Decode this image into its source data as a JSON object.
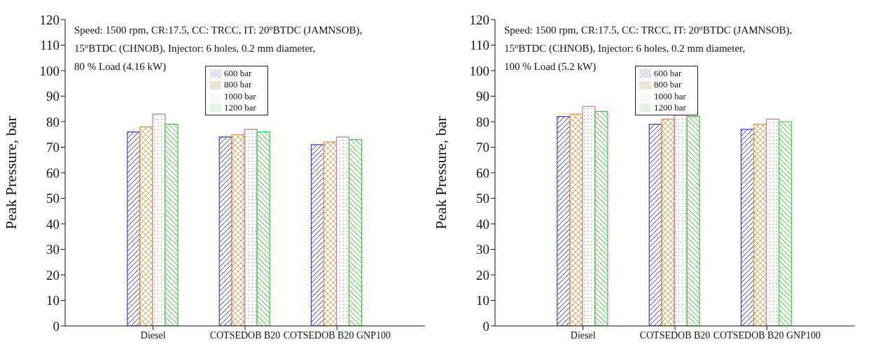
{
  "chart_data": [
    {
      "type": "bar",
      "ylabel": "Peak Pressure, bar",
      "categories": [
        "Diesel",
        "COTSEDOB B20",
        "COTSEDOB B20 GNP100"
      ],
      "ylim": [
        0,
        120
      ],
      "yticks": [
        0,
        10,
        20,
        30,
        40,
        50,
        60,
        70,
        80,
        90,
        100,
        110,
        120
      ],
      "grid": false,
      "legend": "top",
      "annotations": [
        "Speed: 1500 rpm, CR:17.5, CC: TRCC, IT: 20$^{o}$BTDC (JAMNSOB),",
        "15$^{o}$BTDC (CHNOB), Injector: 6 holes, 0.2 mm diameter,",
        "80 % Load (4.16 kW)"
      ],
      "series": [
        {
          "name": "600 bar",
          "color": "#3b3bd0",
          "values": [
            76,
            74,
            71
          ]
        },
        {
          "name": "800 bar",
          "color": "#e8903a",
          "values": [
            78,
            75,
            72
          ]
        },
        {
          "name": "1000 bar",
          "color": "#c0809c",
          "values": [
            83,
            77,
            74
          ]
        },
        {
          "name": "1200 bar",
          "color": "#3cc83c",
          "values": [
            79,
            76,
            73
          ]
        }
      ]
    },
    {
      "type": "bar",
      "ylabel": "Peak Pressure, bar",
      "categories": [
        "Diesel",
        "COTSEDOB B20",
        "COTSEDOB B20 GNP100"
      ],
      "ylim": [
        0,
        120
      ],
      "yticks": [
        0,
        10,
        20,
        30,
        40,
        50,
        60,
        70,
        80,
        90,
        100,
        110,
        120
      ],
      "grid": false,
      "legend": "top",
      "annotations": [
        "Speed: 1500 rpm, CR:17.5, CC: TRCC, IT: 20$^{o}$BTDC (JAMNSOB),",
        "15$^{o}$BTDC (CHNOB), Injector: 6 holes, 0.2 mm diameter,",
        "100 % Load (5.2 kW)"
      ],
      "series": [
        {
          "name": "600 bar",
          "color": "#3b3bd0",
          "values": [
            82,
            79,
            77
          ]
        },
        {
          "name": "800 bar",
          "color": "#e8903a",
          "values": [
            83,
            81,
            79
          ]
        },
        {
          "name": "1000 bar",
          "color": "#c0809c",
          "values": [
            86,
            83,
            81
          ]
        },
        {
          "name": "1200 bar",
          "color": "#3cc83c",
          "values": [
            84,
            82,
            80
          ]
        }
      ]
    }
  ]
}
